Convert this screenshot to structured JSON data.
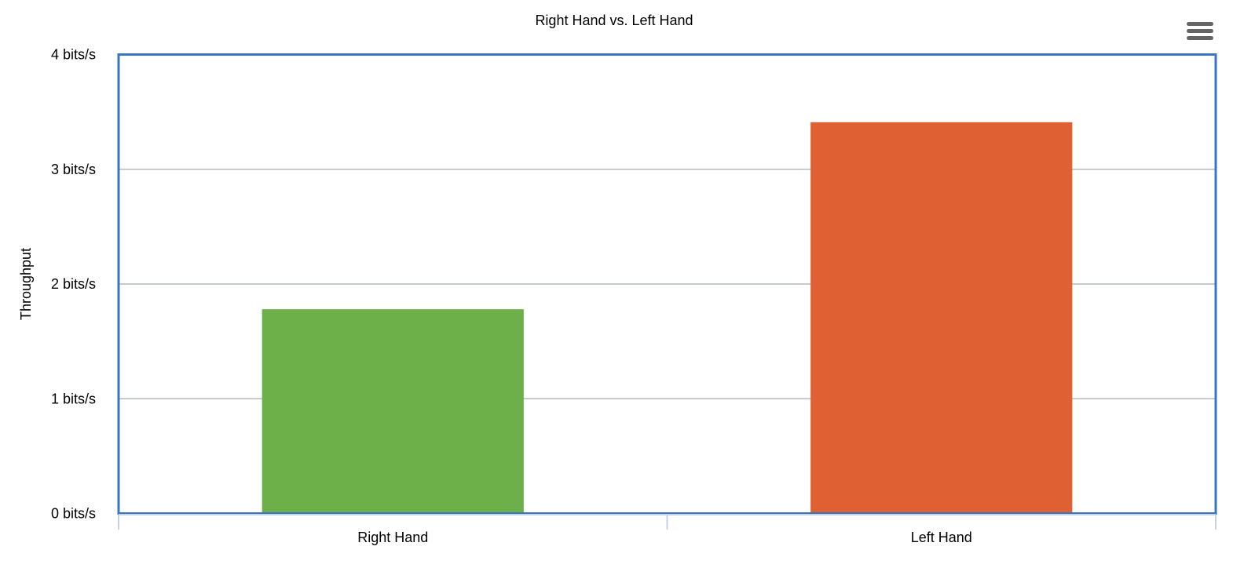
{
  "chart_data": {
    "type": "bar",
    "title": "Right Hand vs. Left Hand",
    "categories": [
      "Right Hand",
      "Left Hand"
    ],
    "values": [
      1.78,
      3.41
    ],
    "colors": [
      "#6db04a",
      "#de6033"
    ],
    "ylabel": "Throughput",
    "xlabel": "",
    "ylim": [
      0,
      4
    ],
    "yticks": [
      0,
      1,
      2,
      3,
      4
    ],
    "ytick_labels": [
      "0 bits/s",
      "1 bits/s",
      "2 bits/s",
      "3 bits/s",
      "4 bits/s"
    ],
    "grid": true,
    "legend": "none"
  },
  "toolbar": {
    "menu_icon": "hamburger-menu-icon"
  }
}
